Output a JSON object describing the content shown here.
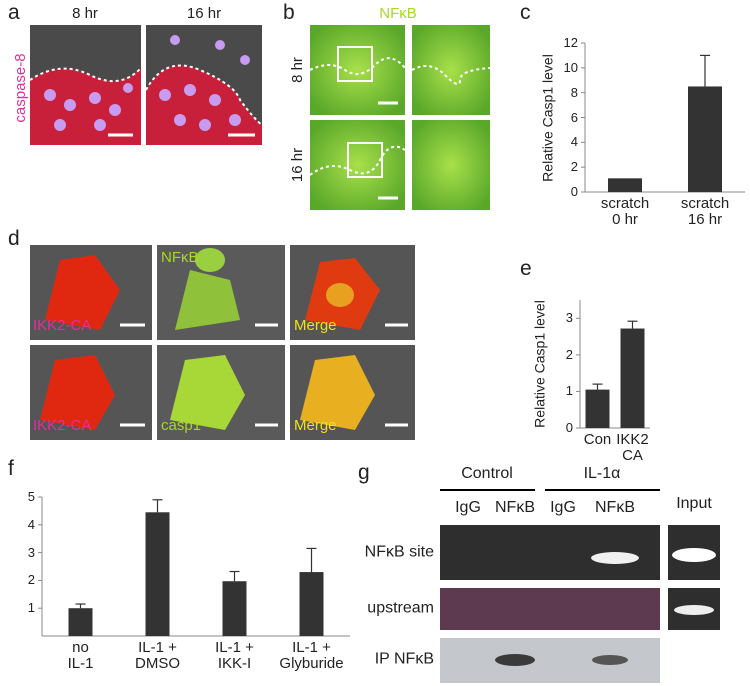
{
  "panel_labels": [
    "a",
    "b",
    "c",
    "d",
    "e",
    "f",
    "g"
  ],
  "panel_a": {
    "times": [
      "8 hr",
      "16 hr"
    ],
    "stain": "caspase-8"
  },
  "panel_b": {
    "stain": "NFκB",
    "times": [
      "8 hr",
      "16 hr"
    ]
  },
  "panel_d": {
    "labels": [
      [
        "IKK2-CA",
        "NFκB",
        "Merge"
      ],
      [
        "IKK2-CA",
        "casp1",
        "Merge"
      ]
    ]
  },
  "chart_data": [
    {
      "type": "bar",
      "ylabel": "Relative Casp1 level",
      "categories": [
        "scratch\n0 hr",
        "scratch\n16 hr"
      ],
      "values": [
        1.1,
        8.5
      ],
      "errors": [
        0,
        2.5
      ],
      "color": "#333333",
      "ylim": [
        0,
        12
      ],
      "yticks": [
        0,
        2,
        4,
        6,
        8,
        10,
        12
      ]
    },
    {
      "type": "bar",
      "ylabel": "Relative Casp1 level",
      "categories": [
        "Con",
        "IKK2\nCA"
      ],
      "values": [
        1.05,
        2.72
      ],
      "errors": [
        0.15,
        0.2
      ],
      "color": "#333333",
      "ylim": [
        0,
        3.5
      ],
      "yticks": [
        0,
        1,
        2,
        3
      ]
    },
    {
      "type": "bar",
      "categories": [
        "no\nIL-1",
        "IL-1 +\nDMSO",
        "IL-1 +\nIKK-I",
        "IL-1 +\nGlyburide"
      ],
      "values": [
        1.0,
        4.45,
        1.97,
        2.3
      ],
      "errors": [
        0.15,
        0.45,
        0.35,
        0.85
      ],
      "color": "#333333",
      "ylim": [
        0,
        5
      ],
      "yticks": [
        1,
        2,
        3,
        4,
        5
      ]
    }
  ],
  "panel_g": {
    "groups": [
      "Control",
      "IL-1α"
    ],
    "lanes": [
      "IgG",
      "NFκB",
      "IgG",
      "NFκB"
    ],
    "input": "Input",
    "rows": [
      "NFκB site",
      "upstream",
      "IP NFκB"
    ]
  }
}
